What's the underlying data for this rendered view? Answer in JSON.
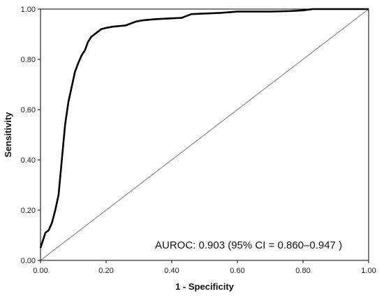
{
  "chart_data": {
    "type": "line",
    "title": "",
    "xlabel": "1 - Specificity",
    "ylabel": "Sensitivity",
    "xlim": [
      0,
      1
    ],
    "ylim": [
      0,
      1
    ],
    "xticks": [
      "0.00",
      "0.20",
      "0.40",
      "0.60",
      "0.80",
      "1.00"
    ],
    "yticks": [
      "0.00",
      "0.20",
      "0.40",
      "0.60",
      "0.80",
      "1.00"
    ],
    "grid": false,
    "legend": "none",
    "annotation": "AUROC: 0.903 (95% CI = 0.860–0.947 )",
    "series": [
      {
        "color": "#000000",
        "x": [
          0.0,
          0.005,
          0.015,
          0.025,
          0.035,
          0.045,
          0.055,
          0.065,
          0.075,
          0.085,
          0.095,
          0.105,
          0.115,
          0.125,
          0.135,
          0.145,
          0.155,
          0.17,
          0.185,
          0.2,
          0.22,
          0.26,
          0.29,
          0.31,
          0.35,
          0.43,
          0.44,
          0.46,
          0.55,
          0.6,
          0.68,
          0.7,
          0.76,
          0.8,
          0.83,
          1.0
        ],
        "y": [
          0.05,
          0.07,
          0.11,
          0.12,
          0.15,
          0.2,
          0.26,
          0.4,
          0.54,
          0.63,
          0.69,
          0.75,
          0.785,
          0.815,
          0.835,
          0.87,
          0.89,
          0.905,
          0.92,
          0.925,
          0.93,
          0.935,
          0.95,
          0.955,
          0.96,
          0.965,
          0.97,
          0.98,
          0.985,
          0.99,
          0.99,
          0.99,
          0.992,
          0.995,
          1.0,
          1.0
        ]
      },
      {
        "color": "#777777",
        "x": [
          0,
          1
        ],
        "y": [
          0,
          1
        ]
      }
    ]
  }
}
